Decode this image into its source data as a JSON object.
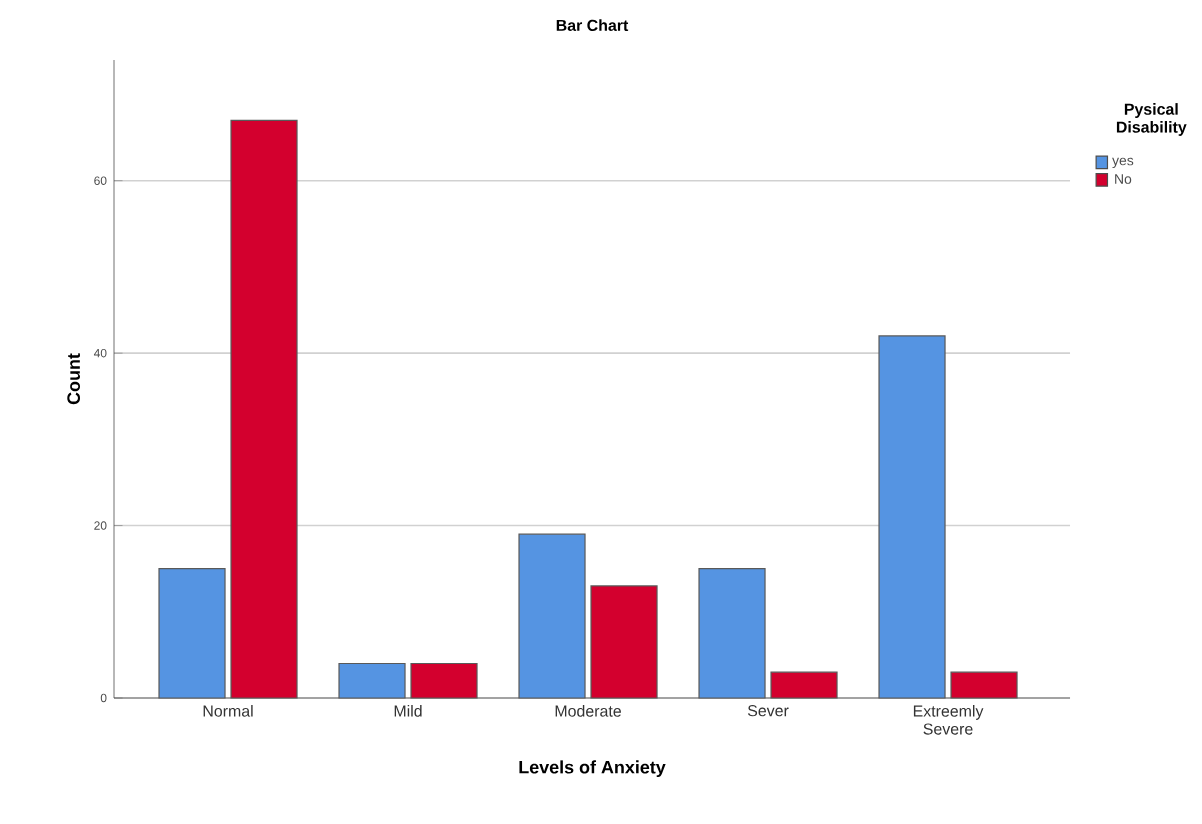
{
  "chart_data": {
    "type": "bar",
    "title": "Bar Chart",
    "xlabel": "Levels of Anxiety",
    "ylabel": "Count",
    "legend_title": "Pysical Disability",
    "categories": [
      "Normal",
      "Mild",
      "Moderate",
      "Sever",
      "Extreemly Severe"
    ],
    "series": [
      {
        "name": "yes",
        "color": "#5594e2",
        "values": [
          15,
          4,
          19,
          15,
          42
        ]
      },
      {
        "name": "No",
        "color": "#d3002e",
        "values": [
          67,
          4,
          13,
          3,
          3
        ]
      }
    ],
    "ylim": [
      0,
      74
    ],
    "yticks": [
      0,
      20,
      40,
      60
    ],
    "grid": "y",
    "legend": "top right"
  }
}
